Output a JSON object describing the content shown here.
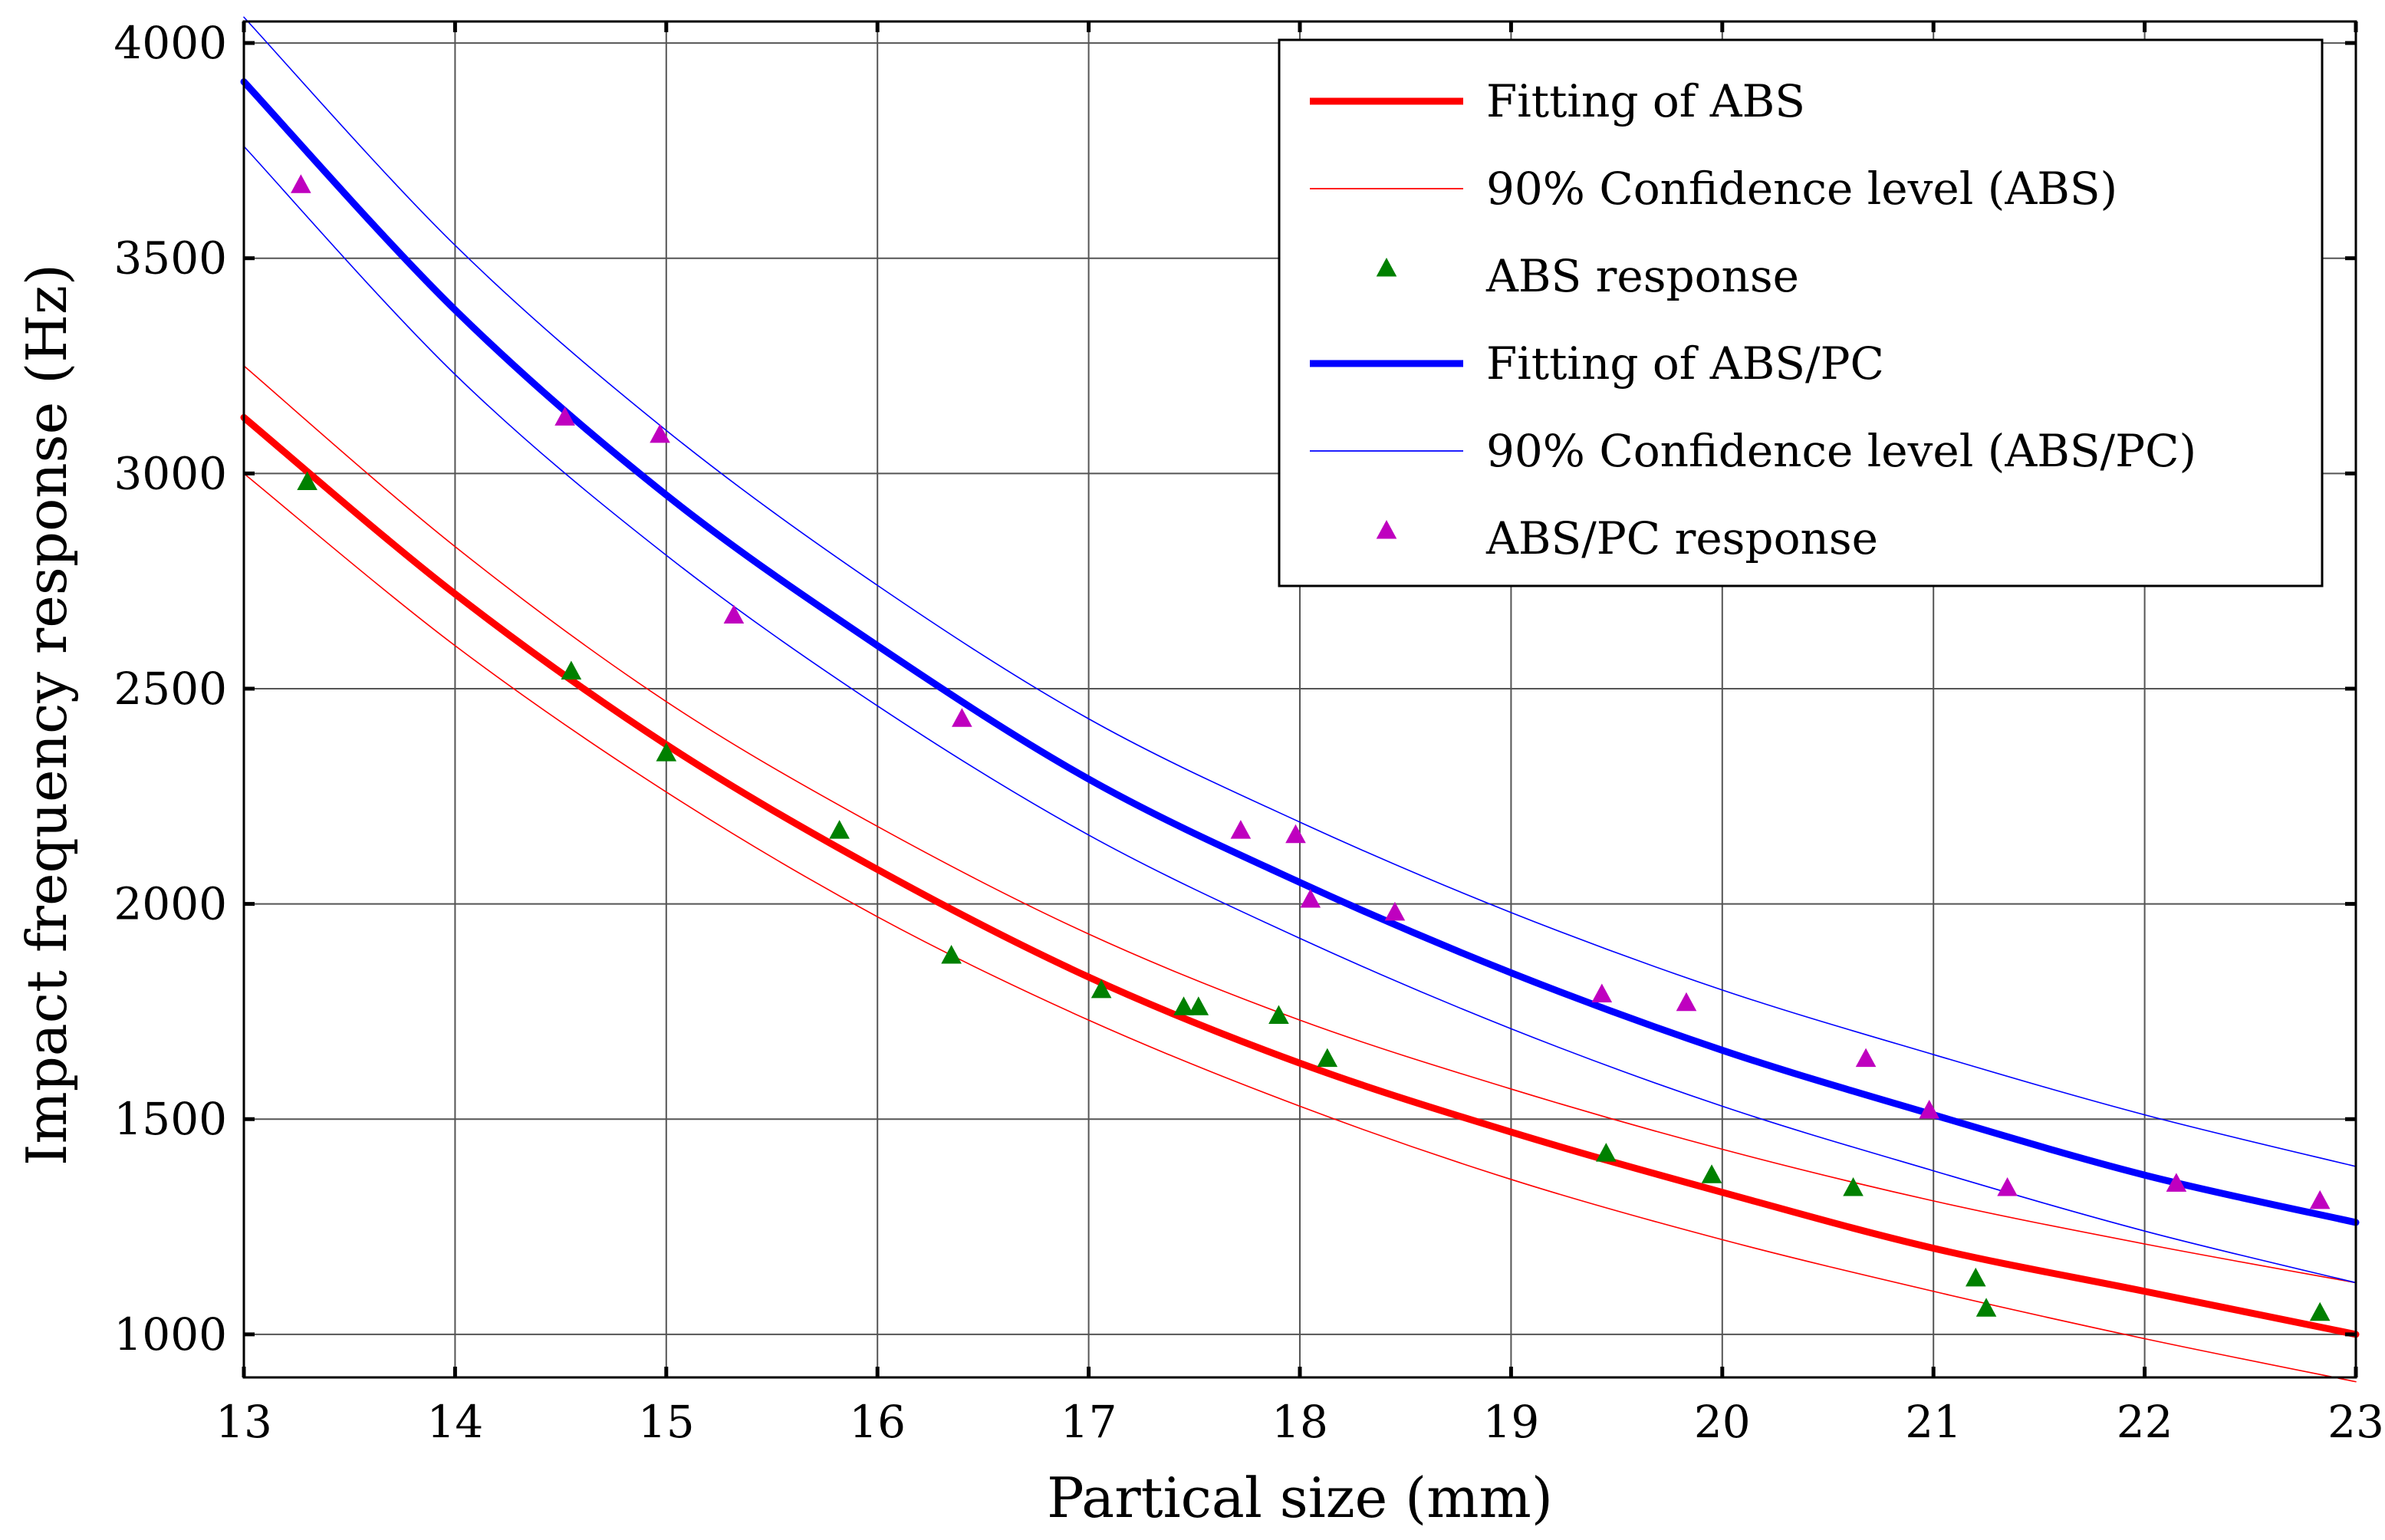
{
  "chart_data": {
    "type": "scatter",
    "title": "",
    "xlabel": "Partical size (mm)",
    "ylabel": "Impact frequency response (Hz)",
    "xlim": [
      13,
      23
    ],
    "ylim": [
      900,
      4050
    ],
    "xticks": [
      13,
      14,
      15,
      16,
      17,
      18,
      19,
      20,
      21,
      22,
      23
    ],
    "yticks": [
      1000,
      1500,
      2000,
      2500,
      3000,
      3500,
      4000
    ],
    "grid": true,
    "legend_position": "top-right",
    "colors": {
      "abs_fit": "#ff0000",
      "abs_ci": "#ff0000",
      "abs_points": "#008000",
      "abspc_fit": "#0000ff",
      "abspc_ci": "#0000ff",
      "abspc_points": "#bf00bf"
    },
    "series": [
      {
        "name": "Fitting of ABS",
        "kind": "line",
        "style": "thick",
        "color": "#ff0000",
        "x": [
          13,
          14,
          15,
          16,
          17,
          18,
          19,
          20,
          21,
          22,
          23
        ],
        "values": [
          3130,
          2720,
          2370,
          2080,
          1830,
          1630,
          1470,
          1330,
          1200,
          1100,
          1000
        ]
      },
      {
        "name": "90% Confidence level (ABS)",
        "kind": "line",
        "style": "thin",
        "color": "#ff0000",
        "x": [
          13,
          14,
          15,
          16,
          17,
          18,
          19,
          20,
          21,
          22,
          23
        ],
        "values": [
          3250,
          2830,
          2470,
          2180,
          1930,
          1730,
          1570,
          1430,
          1310,
          1210,
          1120
        ]
      },
      {
        "name": "90% Confidence level (ABS) lower",
        "kind": "line",
        "style": "thin",
        "color": "#ff0000",
        "x": [
          13,
          14,
          15,
          16,
          17,
          18,
          19,
          20,
          21,
          22,
          23
        ],
        "values": [
          3000,
          2600,
          2260,
          1970,
          1730,
          1530,
          1360,
          1220,
          1100,
          990,
          890
        ]
      },
      {
        "name": "ABS response",
        "kind": "points",
        "color": "#008000",
        "x": [
          13.3,
          14.55,
          15.0,
          15.82,
          16.35,
          17.06,
          17.45,
          17.52,
          17.9,
          18.13,
          19.45,
          19.95,
          20.62,
          21.2,
          21.25,
          22.83
        ],
        "values": [
          2980,
          2540,
          2350,
          2170,
          1880,
          1800,
          1760,
          1760,
          1740,
          1640,
          1420,
          1370,
          1340,
          1130,
          1060,
          1050
        ]
      },
      {
        "name": "Fitting of ABS/PC",
        "kind": "line",
        "style": "thick",
        "color": "#0000ff",
        "x": [
          13,
          14,
          15,
          16,
          17,
          18,
          19,
          20,
          21,
          22,
          23
        ],
        "values": [
          3910,
          3380,
          2950,
          2600,
          2290,
          2050,
          1840,
          1660,
          1510,
          1370,
          1260
        ]
      },
      {
        "name": "90% Confidence level (ABS/PC)",
        "kind": "line",
        "style": "thin",
        "color": "#0000ff",
        "x": [
          13,
          14,
          15,
          16,
          17,
          18,
          19,
          20,
          21,
          22,
          23
        ],
        "values": [
          4060,
          3530,
          3100,
          2740,
          2430,
          2190,
          1980,
          1800,
          1650,
          1510,
          1390
        ]
      },
      {
        "name": "90% Confidence level (ABS/PC) lower",
        "kind": "line",
        "style": "thin",
        "color": "#0000ff",
        "x": [
          13,
          14,
          15,
          16,
          17,
          18,
          19,
          20,
          21,
          22,
          23
        ],
        "values": [
          3760,
          3230,
          2810,
          2460,
          2160,
          1920,
          1710,
          1530,
          1380,
          1240,
          1120
        ]
      },
      {
        "name": "ABS/PC response",
        "kind": "points",
        "color": "#bf00bf",
        "x": [
          13.27,
          14.52,
          14.97,
          15.32,
          16.4,
          17.72,
          17.98,
          18.05,
          18.45,
          19.43,
          19.83,
          20.68,
          20.98,
          21.35,
          22.15,
          22.83
        ],
        "values": [
          3670,
          3130,
          3090,
          2670,
          2430,
          2170,
          2160,
          2010,
          1980,
          1790,
          1770,
          1640,
          1520,
          1340,
          1350,
          1310
        ]
      }
    ],
    "legend": [
      {
        "label": "Fitting of ABS",
        "symbol": "thick-line",
        "color": "#ff0000"
      },
      {
        "label": "90% Confidence level (ABS)",
        "symbol": "thin-line",
        "color": "#ff0000"
      },
      {
        "label": "ABS response",
        "symbol": "triangle",
        "color": "#008000"
      },
      {
        "label": "Fitting of ABS/PC",
        "symbol": "thick-line",
        "color": "#0000ff"
      },
      {
        "label": "90% Confidence level (ABS/PC)",
        "symbol": "thin-line",
        "color": "#0000ff"
      },
      {
        "label": "ABS/PC response",
        "symbol": "triangle",
        "color": "#bf00bf"
      }
    ]
  }
}
